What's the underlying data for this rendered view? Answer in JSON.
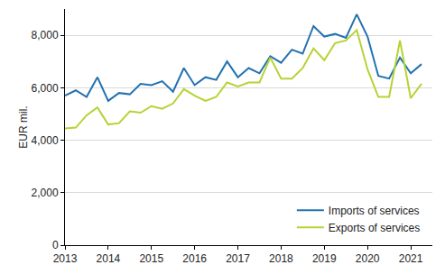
{
  "chart_data": {
    "type": "line",
    "y_label": "EUR mil.",
    "x": [
      2013,
      2013.25,
      2013.5,
      2013.75,
      2014,
      2014.25,
      2014.5,
      2014.75,
      2015,
      2015.25,
      2015.5,
      2015.75,
      2016,
      2016.25,
      2016.5,
      2016.75,
      2017,
      2017.25,
      2017.5,
      2017.75,
      2018,
      2018.25,
      2018.5,
      2018.75,
      2019,
      2019.25,
      2019.5,
      2019.75,
      2020,
      2020.25,
      2020.5,
      2020.75,
      2021,
      2021.25
    ],
    "series": [
      {
        "name": "Imports of services",
        "color": "#2372b0",
        "values": [
          5700,
          5900,
          5650,
          6400,
          5500,
          5800,
          5750,
          6150,
          6100,
          6250,
          5850,
          6750,
          6100,
          6400,
          6300,
          7000,
          6400,
          6750,
          6550,
          7200,
          6950,
          7450,
          7300,
          8350,
          7950,
          8050,
          7900,
          8800,
          7950,
          6450,
          6350,
          7150,
          6550,
          6900
        ]
      },
      {
        "name": "Exports of services",
        "color": "#b5d334",
        "values": [
          4450,
          4480,
          4950,
          5250,
          4600,
          4650,
          5100,
          5050,
          5300,
          5200,
          5400,
          5950,
          5700,
          5500,
          5650,
          6200,
          6050,
          6200,
          6200,
          7150,
          6350,
          6350,
          6750,
          7500,
          7050,
          7700,
          7800,
          8200,
          6700,
          5650,
          5650,
          7800,
          5600,
          6150
        ]
      }
    ],
    "xlim": [
      2013,
      2021.5
    ],
    "xticks": [
      2013,
      2014,
      2015,
      2016,
      2017,
      2018,
      2019,
      2020,
      2021
    ],
    "ylim": [
      0,
      9000
    ],
    "yticks": [
      0,
      {
        "value": 2000,
        "label": "2,000"
      },
      {
        "value": 4000,
        "label": "4,000"
      },
      {
        "value": 6000,
        "label": "6,000"
      },
      {
        "value": 8000,
        "label": "8,000"
      }
    ],
    "grid": true,
    "legend": "lower right"
  }
}
